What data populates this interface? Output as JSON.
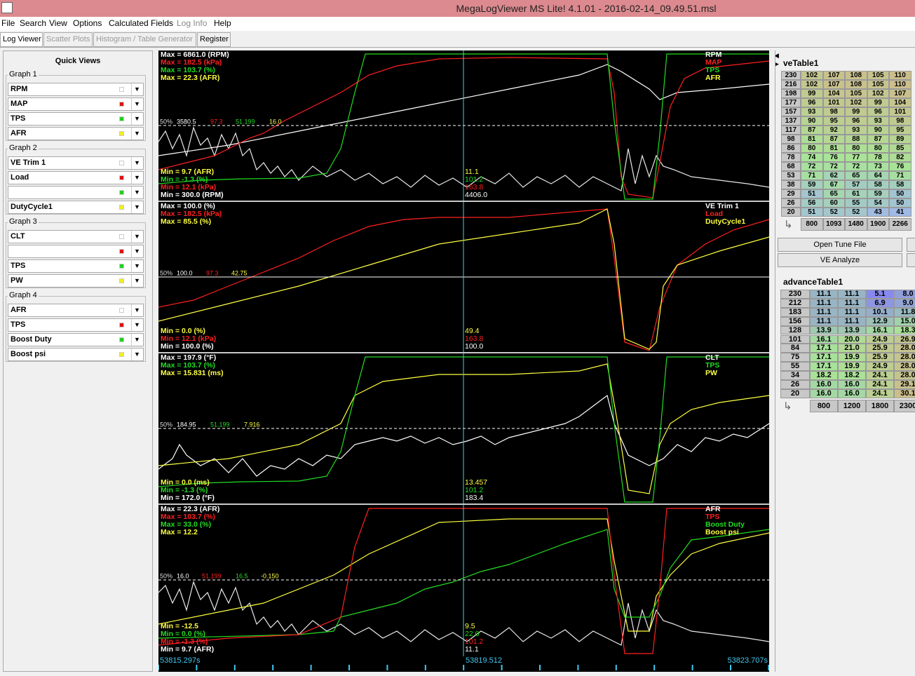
{
  "window": {
    "title": "MegaLogViewer MS Lite! 4.1.01 - 2016-02-14_09.49.51.msl"
  },
  "menu": [
    "File",
    "Search",
    "View",
    "Options",
    "Calculated Fields",
    "Log Info",
    "Help"
  ],
  "tabs": [
    "Log Viewer",
    "Scatter Plots",
    "Histogram / Table Generator",
    "Register"
  ],
  "quick_views": {
    "title": "Quick Views",
    "groups": [
      {
        "label": "Graph 1",
        "fields": [
          "RPM",
          "MAP",
          "TPS",
          "AFR"
        ]
      },
      {
        "label": "Graph 2",
        "fields": [
          "VE Trim 1",
          "Load",
          null,
          "DutyCycle1"
        ]
      },
      {
        "label": "Graph 3",
        "fields": [
          "CLT",
          null,
          "TPS",
          "PW"
        ]
      },
      {
        "label": "Graph 4",
        "fields": [
          "AFR",
          "TPS",
          "Boost Duty",
          "Boost psi"
        ]
      }
    ],
    "colors": [
      "#ffffff",
      "#e01010",
      "#20d020",
      "#f0f020"
    ]
  },
  "graphs": [
    {
      "mid_label": "50%",
      "traces": [
        {
          "name": "RPM",
          "color": "#ffffff",
          "max": "Max = 6861.0 (RPM)",
          "min": "Min = 300.0 (RPM)",
          "mid": "3580.5",
          "cursor": "4406.0"
        },
        {
          "name": "MAP",
          "color": "#ff2020",
          "max": "Max = 182.5 (kPa)",
          "min": "Min = 12.1 (kPa)",
          "mid": "97.3",
          "cursor": "163.8"
        },
        {
          "name": "TPS",
          "color": "#22dd22",
          "max": "Max = 103.7 (%)",
          "min": "Min = -1.3 (%)",
          "mid": "51.199",
          "cursor": "101.2"
        },
        {
          "name": "AFR",
          "color": "#ffff40",
          "max": "Max = 22.3 (AFR)",
          "min": "Min = 9.7 (AFR)",
          "mid": "16.0",
          "cursor": "11.1"
        }
      ]
    },
    {
      "mid_label": "50%",
      "traces": [
        {
          "name": "VE Trim 1",
          "color": "#ffffff",
          "max": "Max = 100.0 (%)",
          "min": "Min = 100.0 (%)",
          "mid": "100.0",
          "cursor": "100.0"
        },
        {
          "name": "Load",
          "color": "#ff2020",
          "max": "Max = 182.5 (kPa)",
          "min": "Min = 12.1 (kPa)",
          "mid": "97.3",
          "cursor": "163.8"
        },
        {
          "name": "DutyCycle1",
          "color": "#ffff40",
          "max": "Max = 85.5 (%)",
          "min": "Min = 0.0 (%)",
          "mid": "42.75",
          "cursor": "49.4"
        }
      ]
    },
    {
      "mid_label": "50%",
      "traces": [
        {
          "name": "CLT",
          "color": "#ffffff",
          "max": "Max = 197.9 (°F)",
          "min": "Min = 172.0 (°F)",
          "mid": "184.95",
          "cursor": "183.4"
        },
        {
          "name": "TPS",
          "color": "#22dd22",
          "max": "Max = 103.7 (%)",
          "min": "Min = -1.3 (%)",
          "mid": "51.199",
          "cursor": "101.2"
        },
        {
          "name": "PW",
          "color": "#ffff40",
          "max": "Max = 15.831 (ms)",
          "min": "Min = 0.0 (ms)",
          "mid": "7.916",
          "cursor": "13.457"
        }
      ]
    },
    {
      "mid_label": "50%",
      "traces": [
        {
          "name": "AFR",
          "color": "#ffffff",
          "max": "Max = 22.3 (AFR)",
          "min": "Min = 9.7 (AFR)",
          "mid": "16.0",
          "cursor": "11.1"
        },
        {
          "name": "TPS",
          "color": "#ff2020",
          "max": "Max = 103.7 (%)",
          "min": "Min = -1.3 (%)",
          "mid": "51.199",
          "cursor": "101.2"
        },
        {
          "name": "Boost Duty",
          "color": "#22dd22",
          "max": "Max = 33.0 (%)",
          "min": "Min = 0.0 (%)",
          "mid": "16.5",
          "cursor": "22.0"
        },
        {
          "name": "Boost psi",
          "color": "#ffff40",
          "max": "Max = 12.2",
          "min": "Min = -12.5",
          "mid": "-0.150",
          "cursor": "9.5"
        }
      ]
    }
  ],
  "time_axis": {
    "start": "53815.297s",
    "cursor": "53819.512",
    "end": "53823.707s"
  },
  "ve_table": {
    "title": "veTable1",
    "rows": [
      {
        "label": "230",
        "cells": [
          "102",
          "107",
          "108",
          "105",
          "110"
        ]
      },
      {
        "label": "216",
        "cells": [
          "102",
          "107",
          "108",
          "105",
          "110"
        ]
      },
      {
        "label": "198",
        "cells": [
          "99",
          "104",
          "105",
          "102",
          "107"
        ]
      },
      {
        "label": "177",
        "cells": [
          "96",
          "101",
          "102",
          "99",
          "104"
        ]
      },
      {
        "label": "157",
        "cells": [
          "93",
          "98",
          "99",
          "96",
          "101"
        ]
      },
      {
        "label": "137",
        "cells": [
          "90",
          "95",
          "96",
          "93",
          "98"
        ]
      },
      {
        "label": "117",
        "cells": [
          "87",
          "92",
          "93",
          "90",
          "95"
        ]
      },
      {
        "label": "98",
        "cells": [
          "81",
          "87",
          "88",
          "87",
          "89"
        ]
      },
      {
        "label": "86",
        "cells": [
          "80",
          "81",
          "80",
          "80",
          "85"
        ]
      },
      {
        "label": "78",
        "cells": [
          "74",
          "76",
          "77",
          "78",
          "82"
        ]
      },
      {
        "label": "68",
        "cells": [
          "72",
          "72",
          "72",
          "73",
          "76"
        ]
      },
      {
        "label": "53",
        "cells": [
          "71",
          "62",
          "65",
          "64",
          "71"
        ]
      },
      {
        "label": "38",
        "cells": [
          "59",
          "67",
          "57",
          "58",
          "58"
        ]
      },
      {
        "label": "29",
        "cells": [
          "51",
          "65",
          "61",
          "59",
          "50"
        ]
      },
      {
        "label": "26",
        "cells": [
          "56",
          "60",
          "55",
          "54",
          "50"
        ]
      },
      {
        "label": "20",
        "cells": [
          "51",
          "52",
          "52",
          "43",
          "41"
        ]
      }
    ],
    "columns": [
      "800",
      "1093",
      "1480",
      "1900",
      "2266"
    ]
  },
  "buttons": [
    "Open Tune File",
    "VE Analyze"
  ],
  "advance_table": {
    "title": "advanceTable1",
    "rows": [
      {
        "label": "230",
        "cells": [
          "11.1",
          "11.1",
          "5.1",
          "8.0"
        ]
      },
      {
        "label": "212",
        "cells": [
          "11.1",
          "11.1",
          "6.9",
          "9.0"
        ]
      },
      {
        "label": "183",
        "cells": [
          "11.1",
          "11.1",
          "10.1",
          "11.8"
        ]
      },
      {
        "label": "156",
        "cells": [
          "11.1",
          "11.1",
          "12.9",
          "15.0"
        ]
      },
      {
        "label": "128",
        "cells": [
          "13.9",
          "13.9",
          "16.1",
          "18.3"
        ]
      },
      {
        "label": "101",
        "cells": [
          "16.1",
          "20.0",
          "24.9",
          "26.9"
        ]
      },
      {
        "label": "84",
        "cells": [
          "17.1",
          "21.0",
          "25.9",
          "28.0"
        ]
      },
      {
        "label": "75",
        "cells": [
          "17.1",
          "19.9",
          "25.9",
          "28.0"
        ]
      },
      {
        "label": "55",
        "cells": [
          "17.1",
          "19.9",
          "24.9",
          "28.0"
        ]
      },
      {
        "label": "34",
        "cells": [
          "18.2",
          "18.2",
          "24.1",
          "28.0"
        ]
      },
      {
        "label": "26",
        "cells": [
          "16.0",
          "16.0",
          "24.1",
          "29.1"
        ]
      },
      {
        "label": "20",
        "cells": [
          "16.0",
          "16.0",
          "24.1",
          "30.1"
        ]
      }
    ],
    "columns": [
      "800",
      "1200",
      "1800",
      "2300"
    ]
  }
}
